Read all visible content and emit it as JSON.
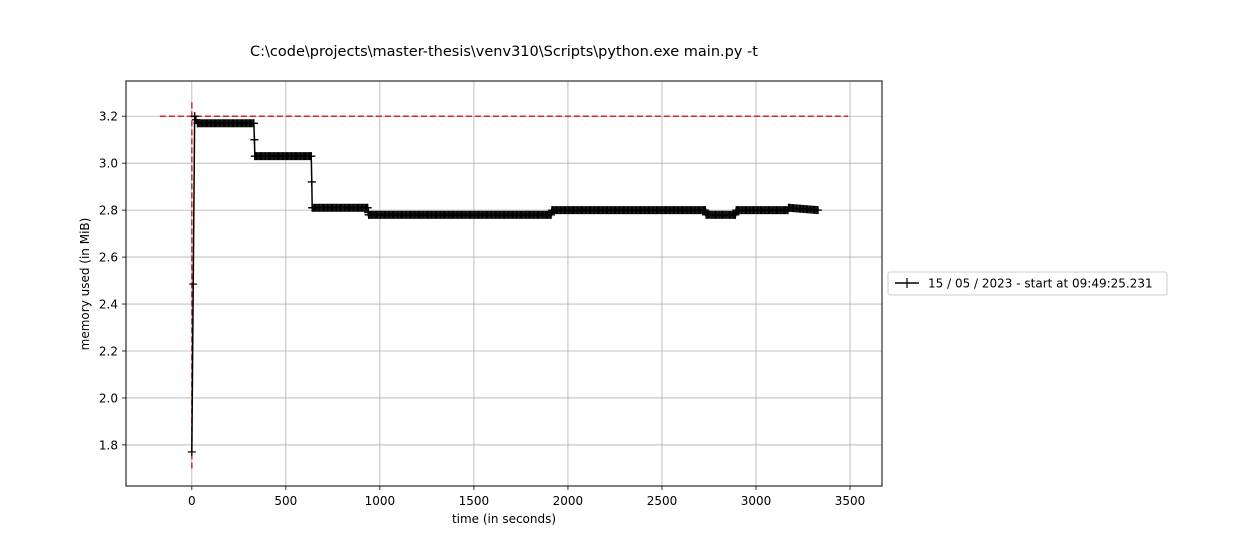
{
  "chart_data": {
    "type": "line",
    "title": "C:\\code\\projects\\master-thesis\\venv310\\Scripts\\python.exe main.py -t",
    "xlabel": "time (in seconds)",
    "ylabel": "memory used (in MiB)",
    "xlim": [
      -350,
      3670
    ],
    "ylim": [
      1.625,
      3.35
    ],
    "xticks": [
      0,
      500,
      1000,
      1500,
      2000,
      2500,
      3000,
      3500
    ],
    "xtick_labels": [
      "0",
      "500",
      "1000",
      "1500",
      "2000",
      "2500",
      "3000",
      "3500"
    ],
    "yticks": [
      1.8,
      2.0,
      2.2,
      2.4,
      2.6,
      2.8,
      3.0,
      3.2
    ],
    "ytick_labels": [
      "1.8",
      "2.0",
      "2.2",
      "2.4",
      "2.6",
      "2.8",
      "3.0",
      "3.2"
    ],
    "grid": true,
    "legend_placement": "right, outside plot",
    "series": [
      {
        "name": "15 / 05 / 2023 - start at 09:49:25.231",
        "color": "#000000",
        "marker": "+",
        "x": [
          0,
          15,
          30,
          330,
          333,
          335,
          635,
          638,
          640,
          935,
          938,
          940,
          1910,
          1913,
          1915,
          2730,
          2733,
          2735,
          2890,
          2893,
          2895,
          3170,
          3173,
          3175,
          3330
        ],
        "y": [
          1.77,
          3.2,
          3.17,
          3.17,
          3.1,
          3.03,
          3.03,
          2.92,
          2.81,
          2.81,
          2.79,
          2.78,
          2.78,
          2.79,
          2.8,
          2.8,
          2.79,
          2.78,
          2.78,
          2.79,
          2.8,
          2.8,
          2.81,
          2.81,
          2.8
        ]
      }
    ],
    "annotations": {
      "max_memory_hline": {
        "y": 3.2,
        "x_from": -170,
        "x_to": 3490,
        "color": "#d62728",
        "style": "dashed"
      },
      "start_vline": {
        "x": 0,
        "y_from": 1.7,
        "y_to": 3.27,
        "color": "#d62728",
        "style": "dashed"
      }
    }
  },
  "legend": {
    "label": "15 / 05 / 2023 - start at 09:49:25.231"
  }
}
